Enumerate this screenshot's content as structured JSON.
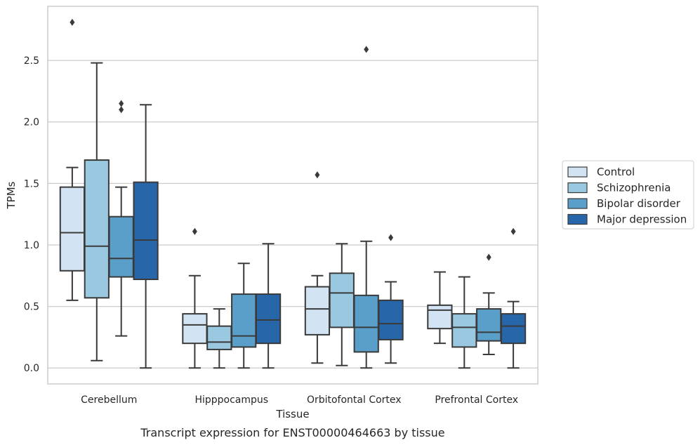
{
  "caption": "Transcript expression for ENST00000464663 by tissue",
  "chart_data": {
    "type": "box",
    "xlabel": "Tissue",
    "ylabel": "TPMs",
    "ylim": [
      -0.13,
      2.94
    ],
    "yticks": [
      0.0,
      0.5,
      1.0,
      1.5,
      2.0,
      2.5
    ],
    "ytick_labels": [
      "0.0",
      "0.5",
      "1.0",
      "1.5",
      "2.0",
      "2.5"
    ],
    "grid": "horizontal",
    "legend_position": "right",
    "categories": [
      "Cerebellum",
      "Hipppocampus",
      "Orbitofontal Cortex",
      "Prefrontal Cortex"
    ],
    "series": [
      {
        "name": "Control",
        "color": "#d2e3f3",
        "boxes": [
          {
            "whisker_low": 0.55,
            "q1": 0.79,
            "median": 1.1,
            "q3": 1.47,
            "whisker_high": 1.63,
            "outliers": [
              2.81
            ]
          },
          {
            "whisker_low": 0.0,
            "q1": 0.2,
            "median": 0.35,
            "q3": 0.44,
            "whisker_high": 0.75,
            "outliers": [
              1.11
            ]
          },
          {
            "whisker_low": 0.04,
            "q1": 0.27,
            "median": 0.48,
            "q3": 0.66,
            "whisker_high": 0.75,
            "outliers": [
              1.57
            ]
          },
          {
            "whisker_low": 0.2,
            "q1": 0.32,
            "median": 0.47,
            "q3": 0.51,
            "whisker_high": 0.78,
            "outliers": []
          }
        ]
      },
      {
        "name": "Schizophrenia",
        "color": "#9ac8e0",
        "boxes": [
          {
            "whisker_low": 0.06,
            "q1": 0.57,
            "median": 0.99,
            "q3": 1.69,
            "whisker_high": 2.48,
            "outliers": []
          },
          {
            "whisker_low": 0.0,
            "q1": 0.15,
            "median": 0.21,
            "q3": 0.34,
            "whisker_high": 0.48,
            "outliers": []
          },
          {
            "whisker_low": 0.02,
            "q1": 0.33,
            "median": 0.61,
            "q3": 0.77,
            "whisker_high": 1.01,
            "outliers": []
          },
          {
            "whisker_low": 0.0,
            "q1": 0.17,
            "median": 0.33,
            "q3": 0.44,
            "whisker_high": 0.74,
            "outliers": []
          }
        ]
      },
      {
        "name": "Bipolar disorder",
        "color": "#5a9fc9",
        "boxes": [
          {
            "whisker_low": 0.26,
            "q1": 0.74,
            "median": 0.89,
            "q3": 1.23,
            "whisker_high": 1.47,
            "outliers": [
              2.1,
              2.15
            ]
          },
          {
            "whisker_low": 0.0,
            "q1": 0.17,
            "median": 0.26,
            "q3": 0.6,
            "whisker_high": 0.85,
            "outliers": []
          },
          {
            "whisker_low": 0.0,
            "q1": 0.13,
            "median": 0.33,
            "q3": 0.59,
            "whisker_high": 1.03,
            "outliers": [
              2.59
            ]
          },
          {
            "whisker_low": 0.11,
            "q1": 0.22,
            "median": 0.29,
            "q3": 0.48,
            "whisker_high": 0.61,
            "outliers": [
              0.9
            ]
          }
        ]
      },
      {
        "name": "Major depression",
        "color": "#2666a9",
        "boxes": [
          {
            "whisker_low": 0.0,
            "q1": 0.72,
            "median": 1.04,
            "q3": 1.51,
            "whisker_high": 2.14,
            "outliers": []
          },
          {
            "whisker_low": 0.0,
            "q1": 0.2,
            "median": 0.39,
            "q3": 0.6,
            "whisker_high": 1.01,
            "outliers": []
          },
          {
            "whisker_low": 0.04,
            "q1": 0.23,
            "median": 0.36,
            "q3": 0.55,
            "whisker_high": 0.7,
            "outliers": [
              1.06
            ]
          },
          {
            "whisker_low": 0.0,
            "q1": 0.2,
            "median": 0.34,
            "q3": 0.44,
            "whisker_high": 0.54,
            "outliers": [
              1.11
            ]
          }
        ]
      }
    ]
  }
}
